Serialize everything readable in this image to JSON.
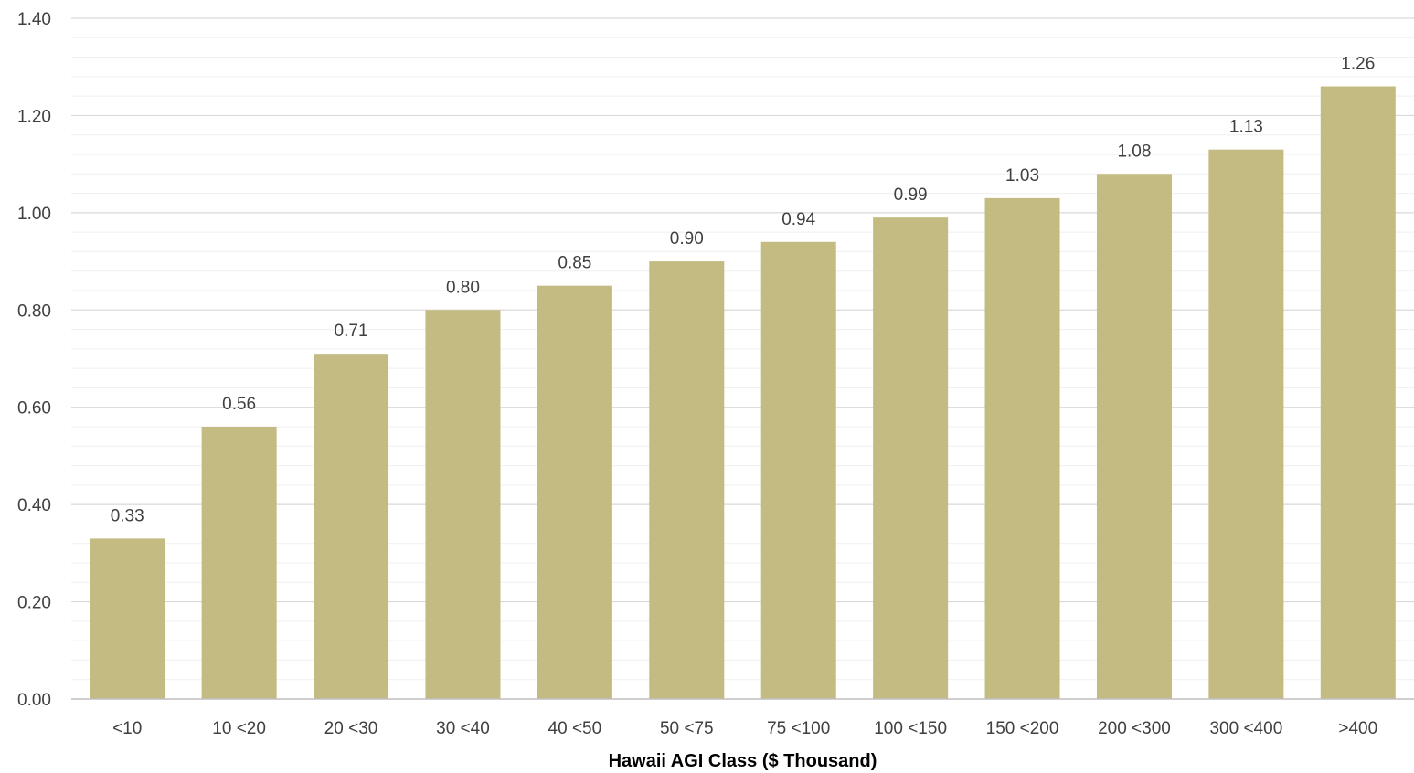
{
  "chart_data": {
    "type": "bar",
    "title": "",
    "xlabel": "Hawaii AGI Class ($ Thousand)",
    "ylabel": "",
    "categories": [
      "<10",
      "10 <20",
      "20 <30",
      "30 <40",
      "40 <50",
      "50 <75",
      "75 <100",
      "100 <150",
      "150 <200",
      "200 <300",
      "300 <400",
      ">400"
    ],
    "values": [
      0.33,
      0.56,
      0.71,
      0.8,
      0.85,
      0.9,
      0.94,
      0.99,
      1.03,
      1.08,
      1.13,
      1.26
    ],
    "value_labels": [
      "0.33",
      "0.56",
      "0.71",
      "0.80",
      "0.85",
      "0.90",
      "0.94",
      "0.99",
      "1.03",
      "1.08",
      "1.13",
      "1.26"
    ],
    "ylim": [
      0,
      1.4
    ],
    "yticks": [
      "0.00",
      "0.20",
      "0.40",
      "0.60",
      "0.80",
      "1.00",
      "1.20",
      "1.40"
    ],
    "ytick_values": [
      0,
      0.2,
      0.4,
      0.6,
      0.8,
      1.0,
      1.2,
      1.4
    ],
    "minor_gridline_step": 0.04,
    "grid": true,
    "legend": "none",
    "colors": {
      "bar": "#c3bb82",
      "major_grid": "#d9d9d9",
      "minor_grid": "#efefef",
      "axis": "#bfbfbf"
    }
  }
}
